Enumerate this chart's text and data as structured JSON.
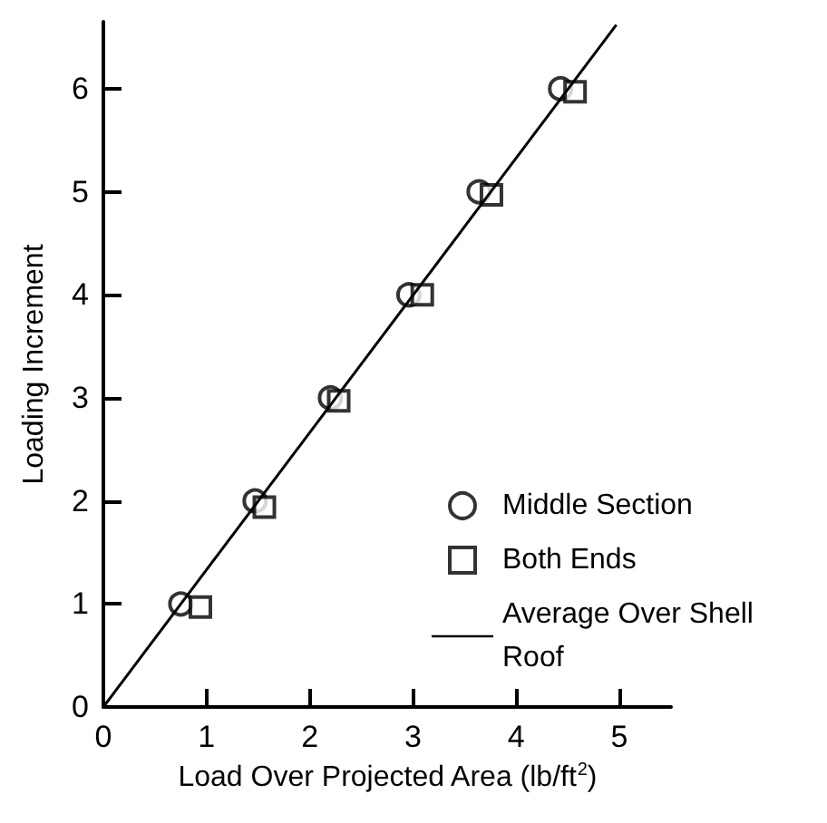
{
  "chart_data": {
    "type": "scatter",
    "xlabel": "Load Over Projected Area (lb/ft$^{2}$)",
    "ylabel": "Loading Increment",
    "series": [
      {
        "name": "Middle Section",
        "type": "scatter",
        "marker": "circle",
        "color": "#000000",
        "x": [
          0.75,
          1.47,
          2.2,
          2.96,
          3.64,
          4.43
        ],
        "values": [
          1,
          2,
          3,
          4,
          5,
          6
        ]
      },
      {
        "name": "Both Ends",
        "type": "scatter",
        "marker": "square",
        "color": "#000000",
        "x": [
          0.94,
          1.56,
          2.28,
          3.09,
          3.76,
          4.57
        ],
        "values": [
          0.97,
          1.94,
          2.97,
          4,
          4.97,
          5.97
        ]
      },
      {
        "name": "Average Over Shell Roof",
        "type": "line",
        "marker": "none",
        "line_style": "solid",
        "color": "#000000",
        "x": [
          0,
          4.97
        ],
        "values": [
          0,
          6.62
        ]
      }
    ],
    "xlim": [
      0,
      5.5
    ],
    "xticks": [
      0,
      1,
      2,
      3,
      4,
      5
    ],
    "ylim": [
      0,
      6.65
    ],
    "yticks": [
      0,
      1,
      2,
      3,
      4,
      5,
      6
    ],
    "grid": false,
    "legend": "right"
  }
}
